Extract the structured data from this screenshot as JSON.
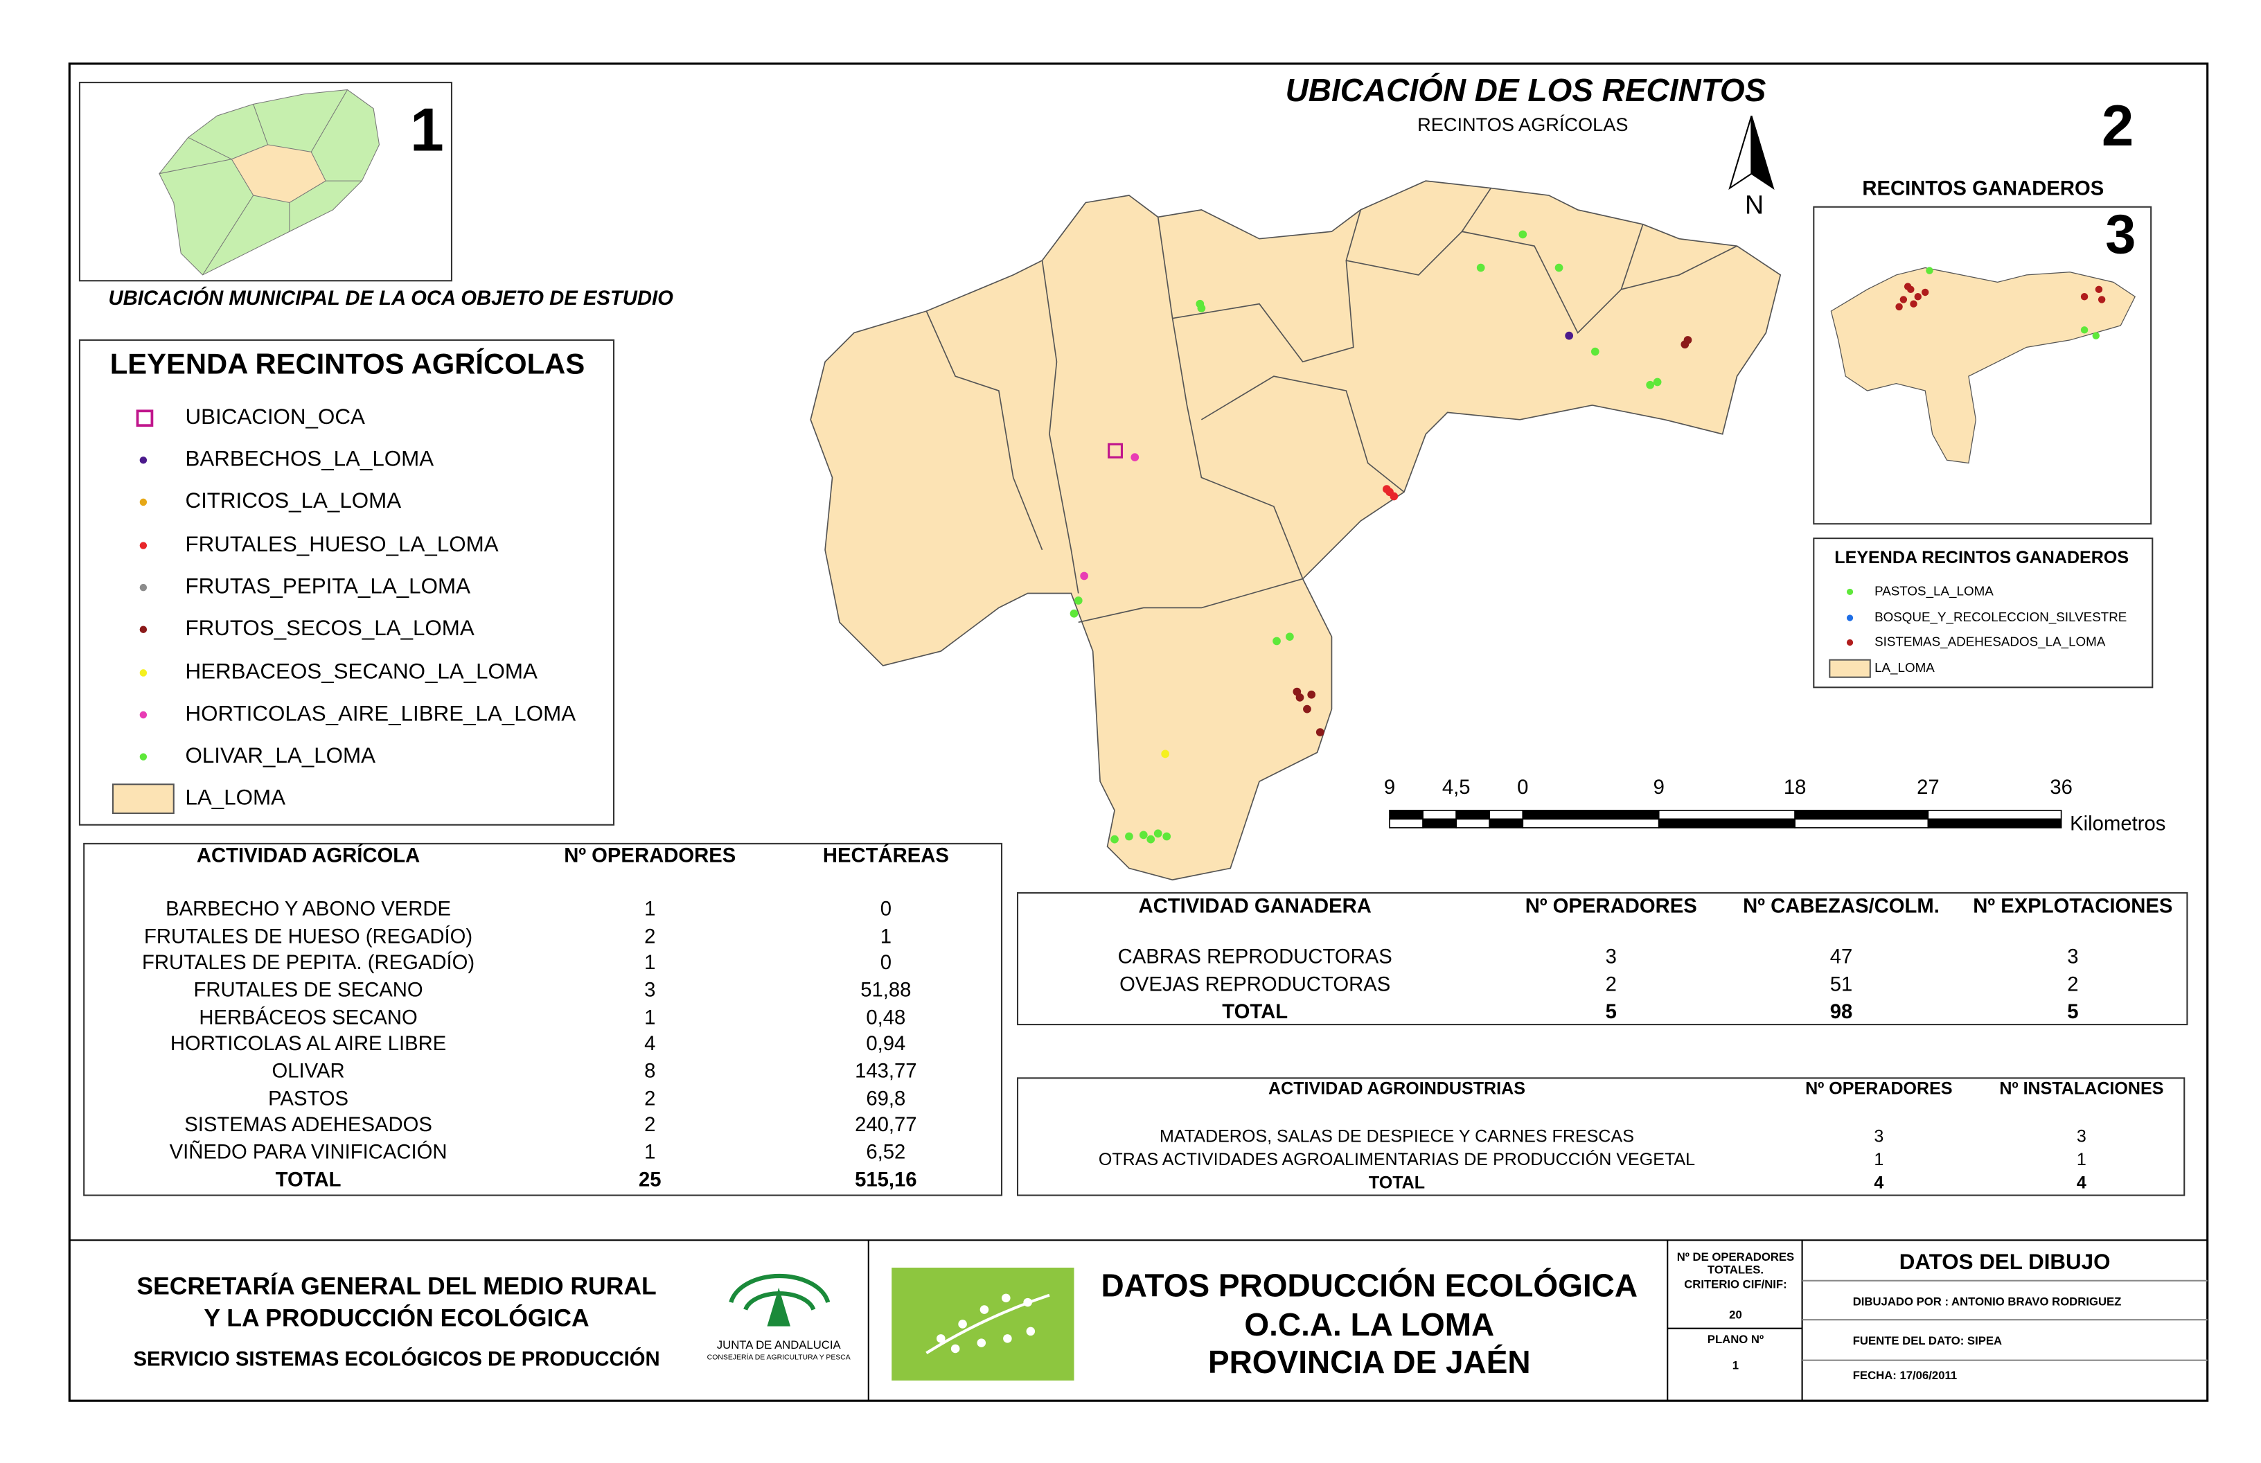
{
  "inset_municipal": {
    "number": "1",
    "caption": "UBICACIÓN MUNICIPAL DE LA OCA OBJETO DE ESTUDIO"
  },
  "main_map": {
    "title": "UBICACIÓN DE LOS RECINTOS",
    "subtitle": "RECINTOS AGRÍCOLAS",
    "number": "2",
    "north": "N"
  },
  "agricultural_legend": {
    "title": "LEYENDA RECINTOS AGRÍCOLAS",
    "items": [
      {
        "label": "UBICACION_OCA",
        "color": "#c0168c"
      },
      {
        "label": "BARBECHOS_LA_LOMA",
        "color": "#4b1a8c"
      },
      {
        "label": "CITRICOS_LA_LOMA",
        "color": "#e6a817"
      },
      {
        "label": "FRUTALES_HUESO_LA_LOMA",
        "color": "#e8262a"
      },
      {
        "label": "FRUTAS_PEPITA_LA_LOMA",
        "color": "#8c8c8c"
      },
      {
        "label": "FRUTOS_SECOS_LA_LOMA",
        "color": "#8b1a1a"
      },
      {
        "label": "HERBACEOS_SECANO_LA_LOMA",
        "color": "#f5f01e"
      },
      {
        "label": "HORTICOLAS_AIRE_LIBRE_LA_LOMA",
        "color": "#e83cb4"
      },
      {
        "label": "OLIVAR_LA_LOMA",
        "color": "#5ee83a"
      },
      {
        "label": "LA_LOMA",
        "color": "#fce3b4"
      }
    ]
  },
  "scale_bar": {
    "labels": [
      "9",
      "4,5",
      "0",
      "9",
      "18",
      "27",
      "36"
    ],
    "unit": "Kilometros"
  },
  "inset_livestock": {
    "title": "RECINTOS GANADEROS",
    "number": "3"
  },
  "livestock_legend": {
    "title": "LEYENDA RECINTOS GANADEROS",
    "items": [
      {
        "label": "PASTOS_LA_LOMA",
        "color": "#5ee83a"
      },
      {
        "label": "BOSQUE_Y_RECOLECCION_SILVESTRE",
        "color": "#1e6ee6"
      },
      {
        "label": "SISTEMAS_ADEHESADOS_LA_LOMA",
        "color": "#b01c1c"
      },
      {
        "label": "LA_LOMA",
        "color": "#fce3b4"
      }
    ]
  },
  "agricultural_table": {
    "headers": [
      "ACTIVIDAD AGRÍCOLA",
      "Nº OPERADORES",
      "HECTÁREAS"
    ],
    "rows": [
      [
        "BARBECHO Y ABONO VERDE",
        "1",
        "0"
      ],
      [
        "FRUTALES DE HUESO (REGADÍO)",
        "2",
        "1"
      ],
      [
        "FRUTALES DE PEPITA. (REGADÍO)",
        "1",
        "0"
      ],
      [
        "FRUTALES DE SECANO",
        "3",
        "51,88"
      ],
      [
        "HERBÁCEOS SECANO",
        "1",
        "0,48"
      ],
      [
        "HORTICOLAS AL AIRE LIBRE",
        "4",
        "0,94"
      ],
      [
        "OLIVAR",
        "8",
        "143,77"
      ],
      [
        "PASTOS",
        "2",
        "69,8"
      ],
      [
        "SISTEMAS ADEHESADOS",
        "2",
        "240,77"
      ],
      [
        "VIÑEDO PARA VINIFICACIÓN",
        "1",
        "6,52"
      ]
    ],
    "total": [
      "TOTAL",
      "25",
      "515,16"
    ]
  },
  "livestock_table": {
    "headers": [
      "ACTIVIDAD GANADERA",
      "Nº OPERADORES",
      "Nº CABEZAS/COLM.",
      "Nº EXPLOTACIONES"
    ],
    "rows": [
      [
        "CABRAS REPRODUCTORAS",
        "3",
        "47",
        "3"
      ],
      [
        "OVEJAS REPRODUCTORAS",
        "2",
        "51",
        "2"
      ]
    ],
    "total": [
      "TOTAL",
      "5",
      "98",
      "5"
    ]
  },
  "agroindustry_table": {
    "headers": [
      "ACTIVIDAD AGROINDUSTRIAS",
      "Nº OPERADORES",
      "Nº INSTALACIONES"
    ],
    "rows": [
      [
        "MATADEROS, SALAS DE DESPIECE Y CARNES FRESCAS",
        "3",
        "3"
      ],
      [
        "OTRAS ACTIVIDADES AGROALIMENTARIAS DE PRODUCCIÓN VEGETAL",
        "1",
        "1"
      ]
    ],
    "total": [
      "TOTAL",
      "4",
      "4"
    ]
  },
  "footer": {
    "organization": [
      "SECRETARÍA GENERAL DEL MEDIO RURAL",
      "Y LA PRODUCCIÓN ECOLÓGICA"
    ],
    "service": "SERVICIO SISTEMAS ECOLÓGICOS DE PRODUCCIÓN",
    "logo": [
      "JUNTA DE ANDALUCIA",
      "CONSEJERÍA DE AGRICULTURA Y PESCA"
    ],
    "title": [
      "DATOS PRODUCCIÓN ECOLÓGICA",
      "O.C.A. LA LOMA",
      "PROVINCIA DE JAÉN"
    ],
    "operators_label": [
      "Nº DE OPERADORES",
      "TOTALES.",
      "CRITERIO CIF/NIF:"
    ],
    "operators_value": "20",
    "plan_label": "PLANO Nº",
    "plan_value": "1",
    "drawing_title": "DATOS DEL DIBUJO",
    "drawn_by": "DIBUJADO POR : ANTONIO BRAVO RODRIGUEZ",
    "source": "FUENTE DEL DATO: SIPEA",
    "date": "FECHA: 17/06/2011"
  }
}
